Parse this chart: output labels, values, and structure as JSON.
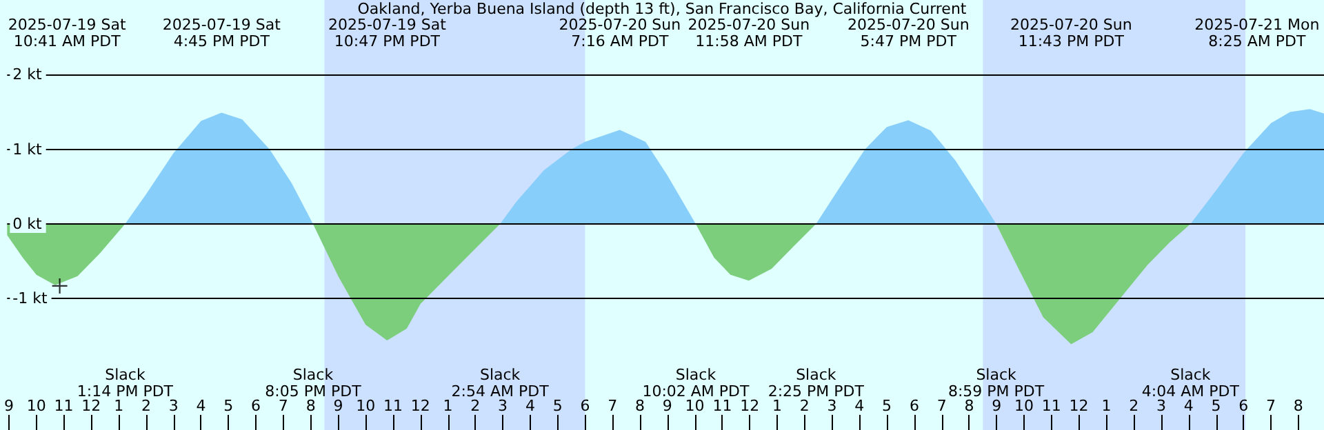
{
  "chart_data": {
    "type": "area",
    "title": "Oakland, Yerba Buena Island (depth 13 ft), San Francisco Bay, California Current",
    "xlim": [
      "2025-07-19T08:56",
      "2025-07-21T08:56"
    ],
    "xticks": [
      {
        "value": "2025-07-19T09:00",
        "label": "9"
      },
      {
        "value": "2025-07-19T10:00",
        "label": "10"
      },
      {
        "value": "2025-07-19T11:00",
        "label": "11"
      },
      {
        "value": "2025-07-19T12:00",
        "label": "12"
      },
      {
        "value": "2025-07-19T13:00",
        "label": "1"
      },
      {
        "value": "2025-07-19T14:00",
        "label": "2"
      },
      {
        "value": "2025-07-19T15:00",
        "label": "3"
      },
      {
        "value": "2025-07-19T16:00",
        "label": "4"
      },
      {
        "value": "2025-07-19T17:00",
        "label": "5"
      },
      {
        "value": "2025-07-19T18:00",
        "label": "6"
      },
      {
        "value": "2025-07-19T19:00",
        "label": "7"
      },
      {
        "value": "2025-07-19T20:00",
        "label": "8"
      },
      {
        "value": "2025-07-19T21:00",
        "label": "9"
      },
      {
        "value": "2025-07-19T22:00",
        "label": "10"
      },
      {
        "value": "2025-07-19T23:00",
        "label": "11"
      },
      {
        "value": "2025-07-20T00:00",
        "label": "12"
      },
      {
        "value": "2025-07-20T01:00",
        "label": "1"
      },
      {
        "value": "2025-07-20T02:00",
        "label": "2"
      },
      {
        "value": "2025-07-20T03:00",
        "label": "3"
      },
      {
        "value": "2025-07-20T04:00",
        "label": "4"
      },
      {
        "value": "2025-07-20T05:00",
        "label": "5"
      },
      {
        "value": "2025-07-20T06:00",
        "label": "6"
      },
      {
        "value": "2025-07-20T07:00",
        "label": "7"
      },
      {
        "value": "2025-07-20T08:00",
        "label": "8"
      },
      {
        "value": "2025-07-20T09:00",
        "label": "9"
      },
      {
        "value": "2025-07-20T10:00",
        "label": "10"
      },
      {
        "value": "2025-07-20T11:00",
        "label": "11"
      },
      {
        "value": "2025-07-20T12:00",
        "label": "12"
      },
      {
        "value": "2025-07-20T13:00",
        "label": "1"
      },
      {
        "value": "2025-07-20T14:00",
        "label": "2"
      },
      {
        "value": "2025-07-20T15:00",
        "label": "3"
      },
      {
        "value": "2025-07-20T16:00",
        "label": "4"
      },
      {
        "value": "2025-07-20T17:00",
        "label": "5"
      },
      {
        "value": "2025-07-20T18:00",
        "label": "6"
      },
      {
        "value": "2025-07-20T19:00",
        "label": "7"
      },
      {
        "value": "2025-07-20T20:00",
        "label": "8"
      },
      {
        "value": "2025-07-20T21:00",
        "label": "9"
      },
      {
        "value": "2025-07-20T22:00",
        "label": "10"
      },
      {
        "value": "2025-07-20T23:00",
        "label": "11"
      },
      {
        "value": "2025-07-21T00:00",
        "label": "12"
      },
      {
        "value": "2025-07-21T01:00",
        "label": "1"
      },
      {
        "value": "2025-07-21T02:00",
        "label": "2"
      },
      {
        "value": "2025-07-21T03:00",
        "label": "3"
      },
      {
        "value": "2025-07-21T04:00",
        "label": "4"
      },
      {
        "value": "2025-07-21T05:00",
        "label": "5"
      },
      {
        "value": "2025-07-21T06:00",
        "label": "6"
      },
      {
        "value": "2025-07-21T07:00",
        "label": "7"
      },
      {
        "value": "2025-07-21T08:00",
        "label": "8"
      }
    ],
    "ylim": [
      -2.76,
      3.0
    ],
    "yticks": [
      {
        "value": 2,
        "label": "2 kt"
      },
      {
        "value": 1,
        "label": "1 kt"
      },
      {
        "value": 0,
        "label": "0 kt"
      },
      {
        "value": -1,
        "label": "-1 kt"
      }
    ],
    "grid": "y",
    "marker": "none",
    "bands": [
      {
        "axis": "x",
        "from": "2025-07-19T20:30",
        "to": "2025-07-20T06:00",
        "color": "#cce0ff"
      },
      {
        "axis": "x",
        "from": "2025-07-20T20:30",
        "to": "2025-07-21T06:04",
        "color": "#cce0ff"
      }
    ],
    "series": [
      {
        "color": "#87cefa",
        "x": [
          "2025-07-19T13:14",
          "2025-07-19T14:00",
          "2025-07-19T15:00",
          "2025-07-19T16:00",
          "2025-07-19T16:45",
          "2025-07-19T17:30",
          "2025-07-19T18:30",
          "2025-07-19T19:18",
          "2025-07-19T20:05",
          null,
          "2025-07-20T02:54",
          "2025-07-20T03:30",
          "2025-07-20T04:30",
          "2025-07-20T05:30",
          "2025-07-20T06:00",
          "2025-07-20T07:16",
          "2025-07-20T08:12",
          "2025-07-20T09:00",
          "2025-07-20T10:02",
          null,
          "2025-07-20T14:25",
          "2025-07-20T15:18",
          "2025-07-20T16:12",
          "2025-07-20T17:00",
          "2025-07-20T17:47",
          "2025-07-20T18:36",
          "2025-07-20T19:30",
          "2025-07-20T20:18",
          "2025-07-20T20:59",
          null,
          "2025-07-21T04:04",
          "2025-07-21T05:00",
          "2025-07-21T06:00",
          "2025-07-21T07:00",
          "2025-07-21T07:42",
          "2025-07-21T08:25",
          "2025-07-21T08:56"
        ],
        "values": [
          0,
          0.4,
          0.95,
          1.38,
          1.49,
          1.4,
          1.0,
          0.55,
          0,
          null,
          0,
          0.3,
          0.72,
          1.0,
          1.1,
          1.26,
          1.1,
          0.65,
          0,
          null,
          0,
          0.5,
          1.0,
          1.3,
          1.39,
          1.25,
          0.85,
          0.4,
          0,
          null,
          0,
          0.45,
          0.95,
          1.35,
          1.5,
          1.54,
          1.48
        ]
      },
      {
        "color": "#7ccd7c",
        "x": [
          "2025-07-19T08:56",
          "2025-07-19T09:30",
          "2025-07-19T10:00",
          "2025-07-19T10:41",
          "2025-07-19T11:30",
          "2025-07-19T12:18",
          "2025-07-19T13:14",
          null,
          "2025-07-19T20:05",
          "2025-07-19T21:00",
          "2025-07-19T22:00",
          "2025-07-19T22:47",
          "2025-07-19T23:30",
          "2025-07-20T00:00",
          "2025-07-20T01:00",
          "2025-07-20T02:00",
          "2025-07-20T02:54",
          null,
          "2025-07-20T10:02",
          "2025-07-20T10:42",
          "2025-07-20T11:18",
          "2025-07-20T11:58",
          "2025-07-20T12:48",
          "2025-07-20T13:36",
          "2025-07-20T14:25",
          null,
          "2025-07-20T20:59",
          "2025-07-20T21:48",
          "2025-07-20T22:42",
          "2025-07-20T23:43",
          "2025-07-21T00:30",
          "2025-07-21T01:30",
          "2025-07-21T02:30",
          "2025-07-21T03:18",
          "2025-07-21T04:04"
        ],
        "values": [
          -0.15,
          -0.45,
          -0.68,
          -0.82,
          -0.7,
          -0.4,
          0,
          null,
          0,
          -0.7,
          -1.35,
          -1.56,
          -1.4,
          -1.07,
          -0.7,
          -0.33,
          0,
          null,
          0,
          -0.45,
          -0.68,
          -0.76,
          -0.6,
          -0.3,
          0,
          null,
          0,
          -0.6,
          -1.25,
          -1.61,
          -1.45,
          -1.0,
          -0.55,
          -0.25,
          0
        ]
      },
      {
        "type": "scatter",
        "marker": "cross",
        "color": "#000000",
        "x": [
          "2025-07-19T10:51"
        ],
        "values": [
          -0.83
        ]
      }
    ],
    "annotations": [
      "2025-07-19 Sat\n10:41 AM PDT",
      "2025-07-19 Sat\n4:45 PM PDT",
      "2025-07-19 Sat\n10:47 PM PDT",
      "2025-07-20 Sun\n7:16 AM PDT",
      "2025-07-20 Sun\n11:58 AM PDT",
      "2025-07-20 Sun\n5:47 PM PDT",
      "2025-07-20 Sun\n11:43 PM PDT",
      "2025-07-21 Mon\n8:25 AM PDT",
      "Slack\n1:14 PM PDT",
      "Slack\n8:05 PM PDT",
      "Slack\n2:54 AM PDT",
      "Slack\n10:02 AM PDT",
      "Slack\n2:25 PM PDT",
      "Slack\n8:59 PM PDT",
      "Slack\n4:04 AM PDT"
    ]
  }
}
